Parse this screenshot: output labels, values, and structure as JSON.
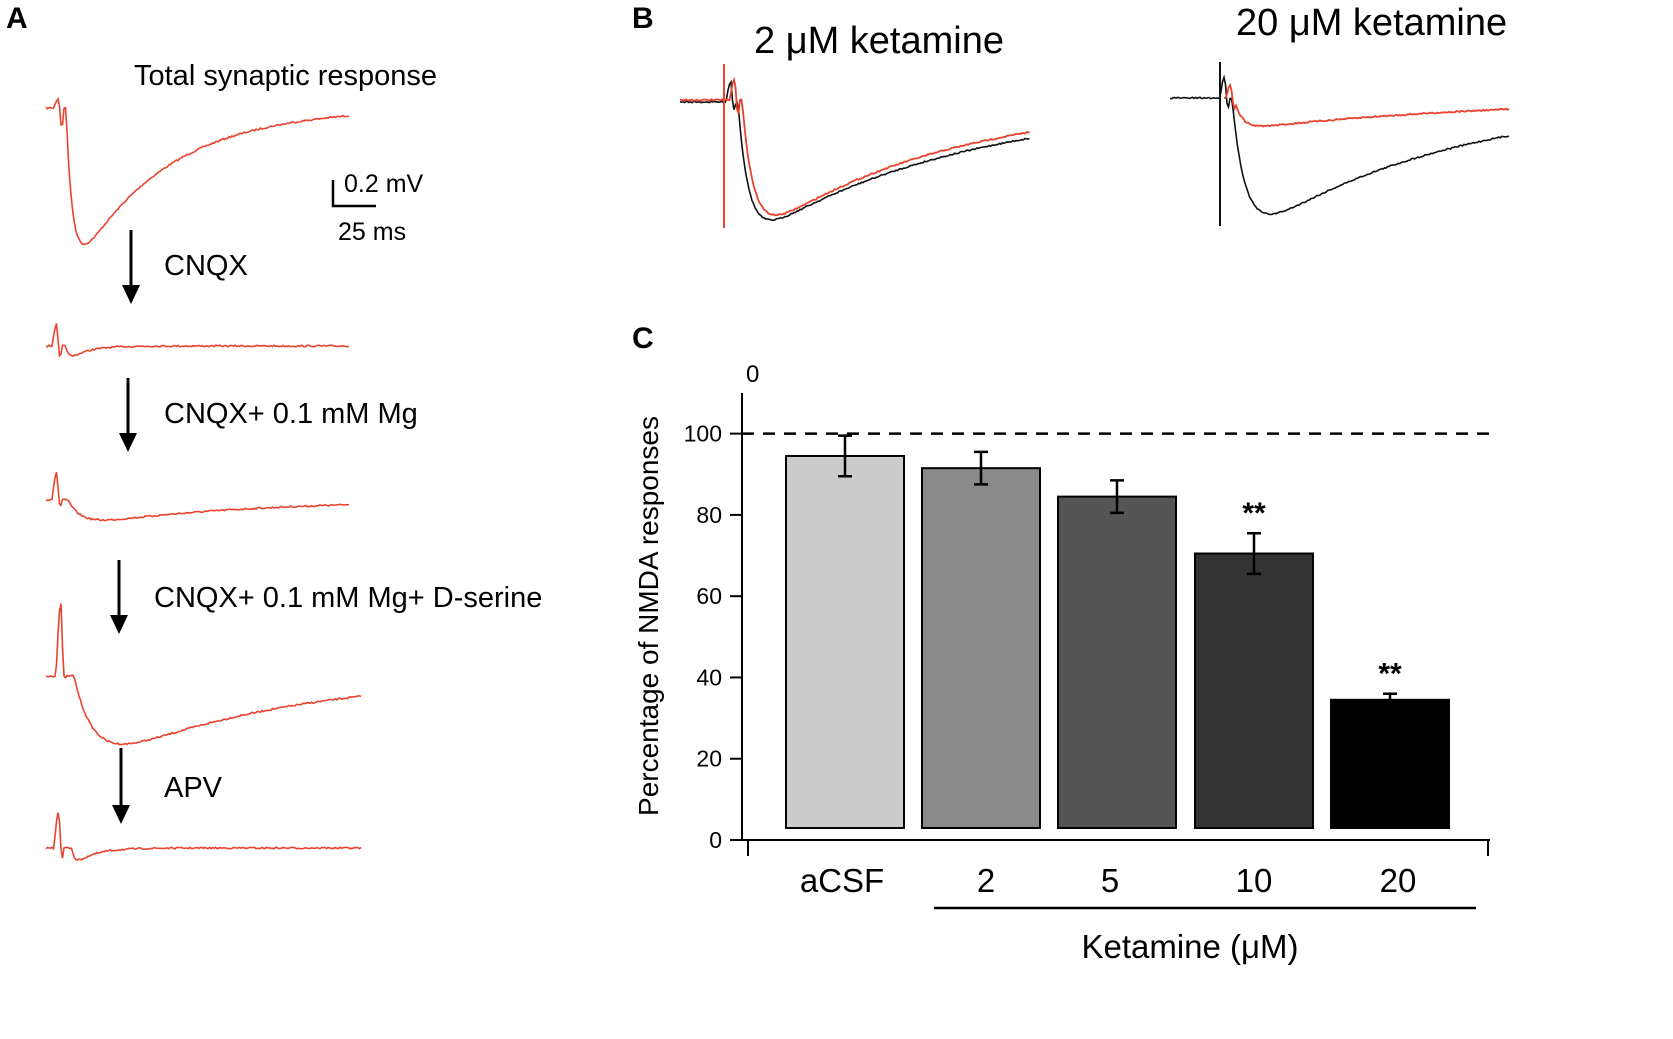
{
  "panels": {
    "a": {
      "letter": "A",
      "title": "Total synaptic response",
      "scale_mv": "0.2 mV",
      "scale_ms": "25 ms",
      "steps": [
        "CNQX",
        "CNQX+ 0.1 mM Mg",
        "CNQX+ 0.1 mM Mg+ D-serine",
        "APV"
      ]
    },
    "b": {
      "letter": "B",
      "title_left": "2 μM ketamine",
      "title_right": "20 μM ketamine"
    },
    "c": {
      "letter": "C"
    }
  },
  "colors": {
    "trace_red": "#e8432f",
    "trace_black": "#111111",
    "bar_fills": [
      "#cccccc",
      "#8a8a8a",
      "#555555",
      "#333333",
      "#000000"
    ]
  },
  "chart_data": {
    "type": "bar",
    "ylabel": "Percentage of NMDA responses",
    "xlabel": "Ketamine (μM)",
    "categories": [
      "aCSF",
      "2",
      "5",
      "10",
      "20"
    ],
    "values": [
      94.5,
      91.5,
      84.5,
      70.5,
      34.5
    ],
    "errors": [
      5.0,
      4.0,
      4.0,
      5.0,
      1.5
    ],
    "significance": [
      "",
      "",
      "",
      "**",
      "**"
    ],
    "reference_line": 100,
    "ylim": [
      0,
      110
    ],
    "yticks": [
      0,
      20,
      40,
      60,
      80,
      100
    ],
    "top_tick_label": "0"
  }
}
